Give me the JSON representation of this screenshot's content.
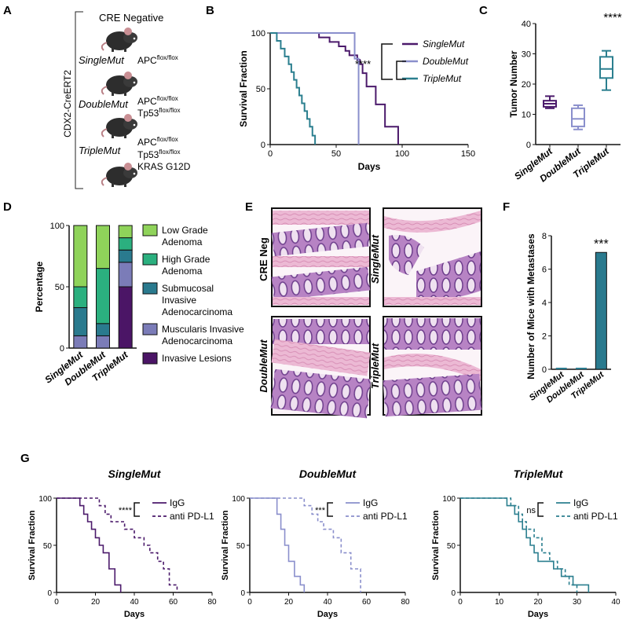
{
  "panel_letters": {
    "A": "A",
    "B": "B",
    "C": "C",
    "D": "D",
    "E": "E",
    "F": "F",
    "G": "G"
  },
  "colors": {
    "single": "#4b1a6b",
    "double": "#8a8fcc",
    "triple": "#2b7f8f",
    "low_grade": "#8fd35a",
    "high_grade": "#2bb07f",
    "submucosal": "#2a7a8e",
    "muscularis": "#7b7cb8",
    "invasive": "#4b1566"
  },
  "panelA": {
    "cre_negative": "CRE Negative",
    "cdx2": "CDX2-CreERT2",
    "single_name": "SingleMut",
    "double_name": "DoubleMut",
    "triple_name": "TripleMut",
    "apc": "APC",
    "tp53": "Tp53",
    "flox_sup": "flox/flox",
    "kras": "KRAS G12D",
    "mouse_icon": "mouse-icon"
  },
  "panelE": {
    "cre_neg": "CRE Neg",
    "single": "SingleMut",
    "double": "DoubleMut",
    "triple": "TripleMut"
  },
  "chart_data": [
    {
      "panel": "B",
      "type": "line",
      "step": true,
      "xlabel": "Days",
      "ylabel": "Survival Fraction",
      "xlim": [
        0,
        150
      ],
      "ylim": [
        0,
        100
      ],
      "xticks": [
        0,
        50,
        100,
        150
      ],
      "yticks": [
        0,
        50,
        100
      ],
      "significance": "****",
      "series": [
        {
          "name": "SingleMut",
          "color": "#4b1a6b",
          "x": [
            0,
            37,
            45,
            52,
            57,
            60,
            63,
            66,
            68,
            70,
            73,
            76,
            80,
            87,
            97
          ],
          "y": [
            100,
            96,
            92,
            88,
            84,
            80,
            80,
            76,
            72,
            64,
            52,
            52,
            36,
            16,
            0
          ]
        },
        {
          "name": "DoubleMut",
          "color": "#8a8fcc",
          "x": [
            0,
            64,
            67
          ],
          "y": [
            100,
            77,
            0
          ]
        },
        {
          "name": "TripleMut",
          "color": "#2b7f8f",
          "x": [
            0,
            5,
            8,
            11,
            14,
            16,
            18,
            20,
            22,
            24,
            26,
            28,
            30,
            32,
            34
          ],
          "y": [
            100,
            93,
            86,
            79,
            72,
            65,
            58,
            51,
            44,
            37,
            30,
            23,
            16,
            8,
            0
          ]
        }
      ]
    },
    {
      "panel": "C",
      "type": "box",
      "ylabel": "Tumor Number",
      "ylim": [
        0,
        40
      ],
      "yticks": [
        0,
        10,
        20,
        30,
        40
      ],
      "categories": [
        "SingleMut",
        "DoubleMut",
        "TripleMut"
      ],
      "significance": "****",
      "boxes": [
        {
          "name": "SingleMut",
          "color": "#4b1a6b",
          "min": 12,
          "q1": 12.5,
          "median": 13.5,
          "q3": 14.5,
          "max": 16
        },
        {
          "name": "DoubleMut",
          "color": "#8a8fcc",
          "min": 5,
          "q1": 6,
          "median": 8.5,
          "q3": 12,
          "max": 13
        },
        {
          "name": "TripleMut",
          "color": "#2b7f8f",
          "min": 18,
          "q1": 22,
          "median": 25,
          "q3": 29,
          "max": 31
        }
      ]
    },
    {
      "panel": "D",
      "type": "bar",
      "stacked": true,
      "ylabel": "Percentage",
      "ylim": [
        0,
        100
      ],
      "yticks": [
        0,
        50,
        100
      ],
      "categories": [
        "SingleMut",
        "DoubleMut",
        "TripleMut"
      ],
      "series": [
        {
          "name": "Invasive Lesions",
          "color": "#4b1566",
          "values": [
            0,
            0,
            50
          ]
        },
        {
          "name": "Muscularis Invasive Adenocarcinoma",
          "color": "#7b7cb8",
          "values": [
            10,
            10,
            20
          ]
        },
        {
          "name": "Submucosal Invasive Adenocarcinoma",
          "color": "#2a7a8e",
          "values": [
            23,
            10,
            10
          ]
        },
        {
          "name": "High Grade Adenoma",
          "color": "#2bb07f",
          "values": [
            17,
            45,
            10
          ]
        },
        {
          "name": "Low Grade Adenoma",
          "color": "#8fd35a",
          "values": [
            50,
            35,
            10
          ]
        }
      ],
      "legend": [
        {
          "lines": [
            "Low Grade",
            "Adenoma"
          ],
          "color": "#8fd35a"
        },
        {
          "lines": [
            "High Grade",
            "Adenoma"
          ],
          "color": "#2bb07f"
        },
        {
          "lines": [
            "Submucosal",
            "Invasive",
            "Adenocarcinoma"
          ],
          "color": "#2a7a8e"
        },
        {
          "lines": [
            "Muscularis Invasive",
            "Adenocarcinoma"
          ],
          "color": "#7b7cb8"
        },
        {
          "lines": [
            "Invasive Lesions"
          ],
          "color": "#4b1566"
        }
      ]
    },
    {
      "panel": "F",
      "type": "bar",
      "ylabel": "Number of Mice with Metastases",
      "ylim": [
        0,
        8
      ],
      "yticks": [
        0,
        2,
        4,
        6,
        8
      ],
      "categories": [
        "SingleMut",
        "DoubleMut",
        "TripleMut"
      ],
      "values": [
        0,
        0,
        7
      ],
      "color": "#2a7a8e",
      "significance": "***"
    },
    {
      "panel": "G1",
      "type": "line",
      "step": true,
      "title": "SingleMut",
      "xlabel": "Days",
      "ylabel": "Survival Fraction",
      "xlim": [
        0,
        80
      ],
      "ylim": [
        0,
        100
      ],
      "xticks": [
        0,
        20,
        40,
        60,
        80
      ],
      "yticks": [
        0,
        50,
        100
      ],
      "significance": "****",
      "series": [
        {
          "name": "IgG",
          "color": "#4b1a6b",
          "dashed": false,
          "x": [
            0,
            12,
            14,
            16,
            18,
            20,
            22,
            24,
            27,
            30,
            33
          ],
          "y": [
            100,
            92,
            83,
            75,
            67,
            58,
            50,
            42,
            25,
            8,
            0
          ]
        },
        {
          "name": "anti PD-L1",
          "color": "#4b1a6b",
          "dashed": true,
          "x": [
            0,
            22,
            25,
            28,
            31,
            35,
            40,
            45,
            48,
            52,
            55,
            58,
            62
          ],
          "y": [
            100,
            92,
            83,
            75,
            75,
            67,
            58,
            50,
            42,
            33,
            25,
            8,
            0
          ]
        }
      ]
    },
    {
      "panel": "G2",
      "type": "line",
      "step": true,
      "title": "DoubleMut",
      "xlabel": "Days",
      "ylabel": "Survival Fraction",
      "xlim": [
        0,
        80
      ],
      "ylim": [
        0,
        100
      ],
      "xticks": [
        0,
        20,
        40,
        60,
        80
      ],
      "yticks": [
        0,
        50,
        100
      ],
      "significance": "***",
      "series": [
        {
          "name": "IgG",
          "color": "#8a8fcc",
          "dashed": false,
          "x": [
            0,
            14,
            16,
            18,
            20,
            23,
            26,
            28
          ],
          "y": [
            100,
            83,
            67,
            50,
            33,
            17,
            8,
            0
          ]
        },
        {
          "name": "anti PD-L1",
          "color": "#8a8fcc",
          "dashed": true,
          "x": [
            0,
            28,
            32,
            35,
            38,
            43,
            47,
            52,
            57
          ],
          "y": [
            100,
            92,
            83,
            75,
            67,
            58,
            42,
            25,
            0
          ]
        }
      ]
    },
    {
      "panel": "G3",
      "type": "line",
      "step": true,
      "title": "TripleMut",
      "xlabel": "Days",
      "ylabel": "Survival Fraction",
      "xlim": [
        0,
        40
      ],
      "ylim": [
        0,
        100
      ],
      "xticks": [
        0,
        10,
        20,
        30,
        40
      ],
      "yticks": [
        0,
        50,
        100
      ],
      "significance": "ns",
      "series": [
        {
          "name": "IgG",
          "color": "#2b7f8f",
          "dashed": false,
          "x": [
            0,
            12,
            14,
            15,
            16,
            17,
            18,
            19,
            20,
            22,
            24,
            26,
            29,
            31,
            33
          ],
          "y": [
            100,
            92,
            83,
            75,
            67,
            58,
            50,
            42,
            33,
            33,
            25,
            17,
            8,
            8,
            0
          ]
        },
        {
          "name": "anti PD-L1",
          "color": "#2b7f8f",
          "dashed": true,
          "x": [
            0,
            13,
            15,
            16,
            17,
            19,
            21,
            23,
            25,
            27,
            28,
            30
          ],
          "y": [
            100,
            92,
            83,
            75,
            67,
            58,
            42,
            33,
            25,
            17,
            8,
            0
          ]
        }
      ]
    }
  ]
}
